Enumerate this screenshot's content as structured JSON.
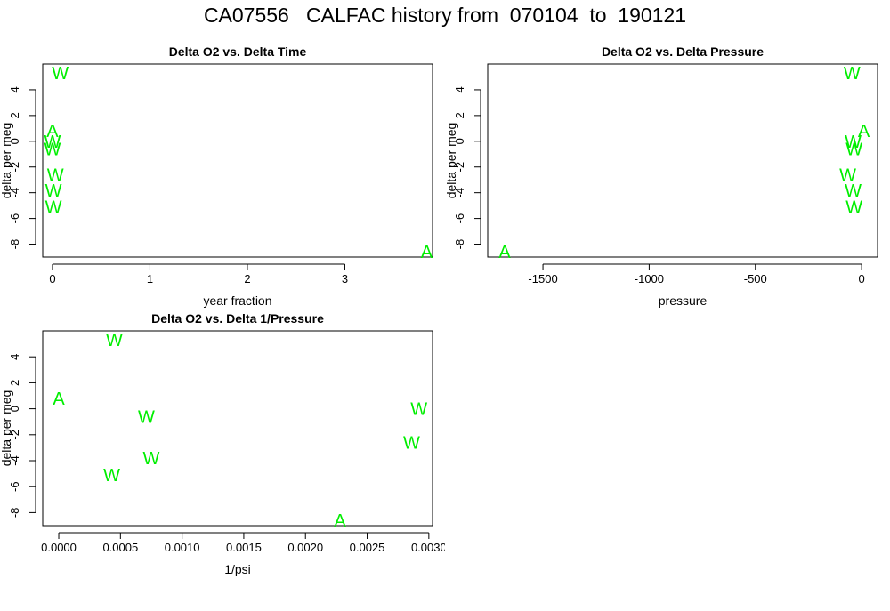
{
  "title": "CA07556   CALFAC history from  070104  to  190121",
  "colors": {
    "marker": "#00ee00",
    "axis": "#000000",
    "background": "#ffffff"
  },
  "chart_data": [
    {
      "type": "scatter",
      "title": "Delta O2 vs. Delta Time",
      "xlabel": "year fraction",
      "ylabel": "delta per meg",
      "xlim": [
        -0.1,
        3.9
      ],
      "ylim": [
        -9,
        6
      ],
      "xticks": [
        0,
        1,
        2,
        3
      ],
      "xtick_labels": [
        "0",
        "1",
        "2",
        "3"
      ],
      "yticks": [
        -8,
        -6,
        -4,
        -2,
        0,
        2,
        4
      ],
      "ytick_labels": [
        "-8",
        "-6",
        "-4",
        "-2",
        "0",
        "2",
        "4"
      ],
      "points": [
        {
          "x": 0.08,
          "y": 5.3,
          "label": "W"
        },
        {
          "x": 0.0,
          "y": 0.8,
          "label": "A"
        },
        {
          "x": 0.0,
          "y": 0.0,
          "label": "W"
        },
        {
          "x": 0.0,
          "y": -0.6,
          "label": "W"
        },
        {
          "x": 0.03,
          "y": -2.6,
          "label": "W"
        },
        {
          "x": 0.01,
          "y": -3.8,
          "label": "W"
        },
        {
          "x": 0.01,
          "y": -5.1,
          "label": "W"
        },
        {
          "x": 3.84,
          "y": -8.6,
          "label": "A"
        }
      ]
    },
    {
      "type": "scatter",
      "title": "Delta O2 vs. Delta Pressure",
      "xlabel": "pressure",
      "ylabel": "delta per meg",
      "xlim": [
        -1760,
        75
      ],
      "ylim": [
        -9,
        6
      ],
      "xticks": [
        -1500,
        -1000,
        -500,
        0
      ],
      "xtick_labels": [
        "-1500",
        "-1000",
        "-500",
        "0"
      ],
      "yticks": [
        -8,
        -6,
        -4,
        -2,
        0,
        2,
        4
      ],
      "ytick_labels": [
        "-8",
        "-6",
        "-4",
        "-2",
        "0",
        "2",
        "4"
      ],
      "points": [
        {
          "x": -45,
          "y": 5.3,
          "label": "W"
        },
        {
          "x": 10,
          "y": 0.8,
          "label": "A"
        },
        {
          "x": -40,
          "y": 0.0,
          "label": "W"
        },
        {
          "x": -35,
          "y": -0.6,
          "label": "W"
        },
        {
          "x": -65,
          "y": -2.6,
          "label": "W"
        },
        {
          "x": -40,
          "y": -3.8,
          "label": "W"
        },
        {
          "x": -35,
          "y": -5.1,
          "label": "W"
        },
        {
          "x": -1680,
          "y": -8.6,
          "label": "A"
        }
      ]
    },
    {
      "type": "scatter",
      "title": "Delta O2 vs. Delta 1/Pressure",
      "xlabel": "1/psi",
      "ylabel": "delta per meg",
      "xlim": [
        -0.00013,
        0.00303
      ],
      "ylim": [
        -9,
        6
      ],
      "xticks": [
        0.0,
        0.0005,
        0.001,
        0.0015,
        0.002,
        0.0025,
        0.003
      ],
      "xtick_labels": [
        "0.0000",
        "0.0005",
        "0.0010",
        "0.0015",
        "0.0020",
        "0.0025",
        "0.0030"
      ],
      "yticks": [
        -8,
        -6,
        -4,
        -2,
        0,
        2,
        4
      ],
      "ytick_labels": [
        "-8",
        "-6",
        "-4",
        "-2",
        "0",
        "2",
        "4"
      ],
      "points": [
        {
          "x": 0.00045,
          "y": 5.3,
          "label": "W"
        },
        {
          "x": 0.0,
          "y": 0.8,
          "label": "A"
        },
        {
          "x": 0.00292,
          "y": 0.0,
          "label": "W"
        },
        {
          "x": 0.00071,
          "y": -0.6,
          "label": "W"
        },
        {
          "x": 0.00286,
          "y": -2.6,
          "label": "W"
        },
        {
          "x": 0.00075,
          "y": -3.8,
          "label": "W"
        },
        {
          "x": 0.00043,
          "y": -5.1,
          "label": "W"
        },
        {
          "x": 0.00228,
          "y": -8.6,
          "label": "A"
        }
      ]
    }
  ]
}
